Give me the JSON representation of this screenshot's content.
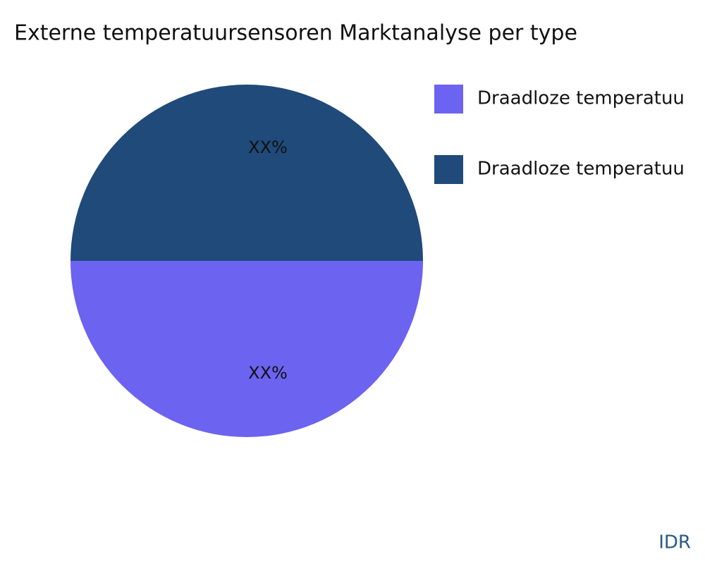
{
  "chart_data": {
    "type": "pie",
    "title": "Externe temperatuursensoren Marktanalyse per type",
    "categories": [
      "Draadloze temperatuu",
      "Draadloze temperatuu"
    ],
    "values": [
      50,
      50
    ],
    "value_labels": [
      "XX%",
      "XX%"
    ],
    "colors": [
      "#6c63f0",
      "#1f4a7a"
    ],
    "legend": "top-right",
    "watermark": "IDR"
  }
}
